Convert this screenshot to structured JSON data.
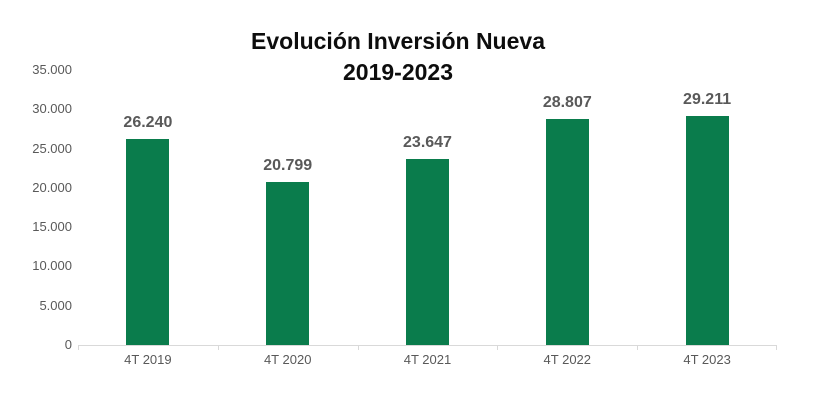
{
  "chart_data": {
    "type": "bar",
    "title": "Evolución Inversión Nueva",
    "subtitle": "2019-2023",
    "categories": [
      "4T 2019",
      "4T 2020",
      "4T 2021",
      "4T 2022",
      "4T 2023"
    ],
    "values": [
      26240,
      20799,
      23647,
      28807,
      29211
    ],
    "value_labels": [
      "26.240",
      "20.799",
      "23.647",
      "28.807",
      "29.211"
    ],
    "y_ticks": [
      {
        "value": 0,
        "label": "0"
      },
      {
        "value": 5000,
        "label": "5.000"
      },
      {
        "value": 10000,
        "label": "10.000"
      },
      {
        "value": 15000,
        "label": "15.000"
      },
      {
        "value": 20000,
        "label": "20.000"
      },
      {
        "value": 25000,
        "label": "25.000"
      },
      {
        "value": 30000,
        "label": "30.000"
      },
      {
        "value": 35000,
        "label": "35.000"
      }
    ],
    "ylim": [
      0,
      35000
    ],
    "xlabel": "",
    "ylabel": "",
    "grid": false,
    "legend": "none",
    "colors": {
      "bar": "#0A7C4C",
      "title": "#0d0d0d",
      "data_label": "#595959",
      "axis_label": "#595959",
      "axis_line": "#D9D9D9",
      "background": "#ffffff"
    }
  }
}
